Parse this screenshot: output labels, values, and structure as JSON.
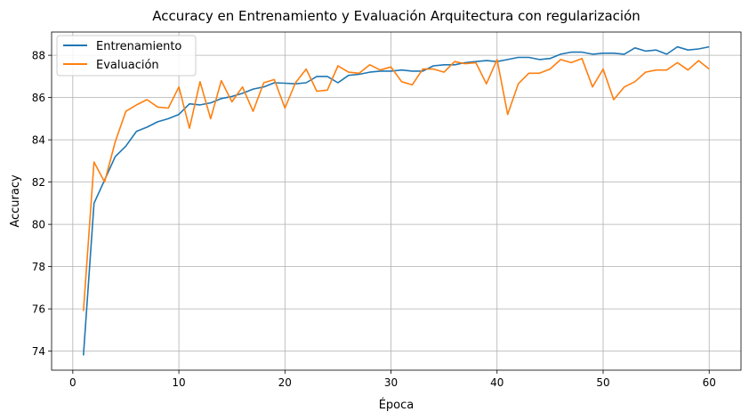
{
  "chart_data": {
    "type": "line",
    "title": "Accuracy en Entrenamiento y Evaluación Arquitectura con regularización",
    "xlabel": "Época",
    "ylabel": "Accuracy",
    "xlim": [
      -2,
      63
    ],
    "ylim": [
      73.1,
      89.1
    ],
    "xticks": [
      0,
      10,
      20,
      30,
      40,
      50,
      60
    ],
    "yticks": [
      74,
      76,
      78,
      80,
      82,
      84,
      86,
      88
    ],
    "grid": true,
    "legend_position": "top-left",
    "x": [
      1,
      2,
      3,
      4,
      5,
      6,
      7,
      8,
      9,
      10,
      11,
      12,
      13,
      14,
      15,
      16,
      17,
      18,
      19,
      20,
      21,
      22,
      23,
      24,
      25,
      26,
      27,
      28,
      29,
      30,
      31,
      32,
      33,
      34,
      35,
      36,
      37,
      38,
      39,
      40,
      41,
      42,
      43,
      44,
      45,
      46,
      47,
      48,
      49,
      50,
      51,
      52,
      53,
      54,
      55,
      56,
      57,
      58,
      59,
      60
    ],
    "series": [
      {
        "name": "Entrenamiento",
        "color": "#1f77b4",
        "values": [
          73.8,
          81.0,
          82.1,
          83.2,
          83.7,
          84.4,
          84.6,
          84.85,
          85.0,
          85.2,
          85.7,
          85.65,
          85.75,
          85.95,
          86.05,
          86.2,
          86.4,
          86.5,
          86.7,
          86.68,
          86.65,
          86.7,
          87.0,
          87.0,
          86.7,
          87.05,
          87.1,
          87.2,
          87.25,
          87.25,
          87.3,
          87.25,
          87.25,
          87.5,
          87.55,
          87.55,
          87.65,
          87.7,
          87.75,
          87.7,
          87.8,
          87.9,
          87.9,
          87.8,
          87.85,
          88.05,
          88.15,
          88.15,
          88.05,
          88.1,
          88.1,
          88.05,
          88.35,
          88.2,
          88.25,
          88.05,
          88.4,
          88.25,
          88.3,
          88.4
        ]
      },
      {
        "name": "Evaluación",
        "color": "#ff7f0e",
        "values": [
          75.9,
          82.95,
          82.0,
          83.9,
          85.35,
          85.65,
          85.9,
          85.55,
          85.5,
          86.5,
          84.55,
          86.75,
          85.0,
          86.8,
          85.8,
          86.5,
          85.35,
          86.7,
          86.85,
          85.5,
          86.7,
          87.35,
          86.3,
          86.35,
          87.5,
          87.2,
          87.15,
          87.55,
          87.3,
          87.45,
          86.75,
          86.6,
          87.35,
          87.35,
          87.2,
          87.7,
          87.6,
          87.65,
          86.65,
          87.8,
          85.2,
          86.65,
          87.15,
          87.15,
          87.35,
          87.8,
          87.65,
          87.85,
          86.5,
          87.35,
          85.9,
          86.5,
          86.75,
          87.2,
          87.3,
          87.3,
          87.65,
          87.3,
          87.75,
          87.35
        ]
      }
    ]
  }
}
